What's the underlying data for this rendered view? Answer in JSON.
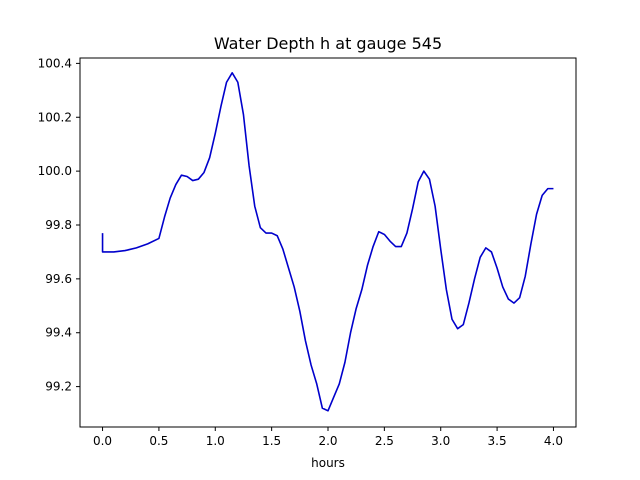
{
  "chart_data": {
    "type": "line",
    "title": "Water Depth h at gauge 545",
    "xlabel": "hours",
    "ylabel": "",
    "xlim": [
      -0.2,
      4.2
    ],
    "ylim": [
      99.05,
      100.42
    ],
    "xticks": [
      "0.0",
      "0.5",
      "1.0",
      "1.5",
      "2.0",
      "2.5",
      "3.0",
      "3.5",
      "4.0"
    ],
    "yticks": [
      "99.2",
      "99.4",
      "99.6",
      "99.8",
      "100.0",
      "100.2",
      "100.4"
    ],
    "grid": false,
    "legend": "none",
    "series": [
      {
        "color": "#0000cc",
        "x": [
          0.0,
          0.0,
          0.1,
          0.2,
          0.3,
          0.4,
          0.5,
          0.55,
          0.6,
          0.65,
          0.7,
          0.75,
          0.8,
          0.85,
          0.9,
          0.95,
          1.0,
          1.05,
          1.1,
          1.15,
          1.2,
          1.25,
          1.3,
          1.35,
          1.4,
          1.45,
          1.5,
          1.55,
          1.6,
          1.65,
          1.7,
          1.75,
          1.8,
          1.85,
          1.9,
          1.95,
          2.0,
          2.05,
          2.1,
          2.15,
          2.2,
          2.25,
          2.3,
          2.35,
          2.4,
          2.45,
          2.5,
          2.55,
          2.6,
          2.65,
          2.7,
          2.75,
          2.8,
          2.85,
          2.9,
          2.95,
          3.0,
          3.05,
          3.1,
          3.15,
          3.2,
          3.25,
          3.3,
          3.35,
          3.4,
          3.45,
          3.5,
          3.55,
          3.6,
          3.65,
          3.7,
          3.75,
          3.8,
          3.85,
          3.9,
          3.95,
          4.0
        ],
        "y": [
          99.77,
          99.7,
          99.7,
          99.705,
          99.715,
          99.73,
          99.75,
          99.83,
          99.9,
          99.95,
          99.985,
          99.98,
          99.965,
          99.97,
          99.995,
          100.05,
          100.14,
          100.24,
          100.33,
          100.365,
          100.33,
          100.21,
          100.02,
          99.87,
          99.79,
          99.77,
          99.77,
          99.76,
          99.71,
          99.64,
          99.57,
          99.48,
          99.37,
          99.28,
          99.21,
          99.12,
          99.11,
          99.16,
          99.21,
          99.29,
          99.4,
          99.49,
          99.56,
          99.65,
          99.72,
          99.775,
          99.765,
          99.74,
          99.72,
          99.72,
          99.77,
          99.86,
          99.96,
          100.0,
          99.97,
          99.87,
          99.71,
          99.56,
          99.45,
          99.415,
          99.43,
          99.51,
          99.6,
          99.68,
          99.715,
          99.7,
          99.64,
          99.57,
          99.525,
          99.51,
          99.53,
          99.61,
          99.73,
          99.84,
          99.91,
          99.935,
          99.935
        ]
      }
    ]
  }
}
